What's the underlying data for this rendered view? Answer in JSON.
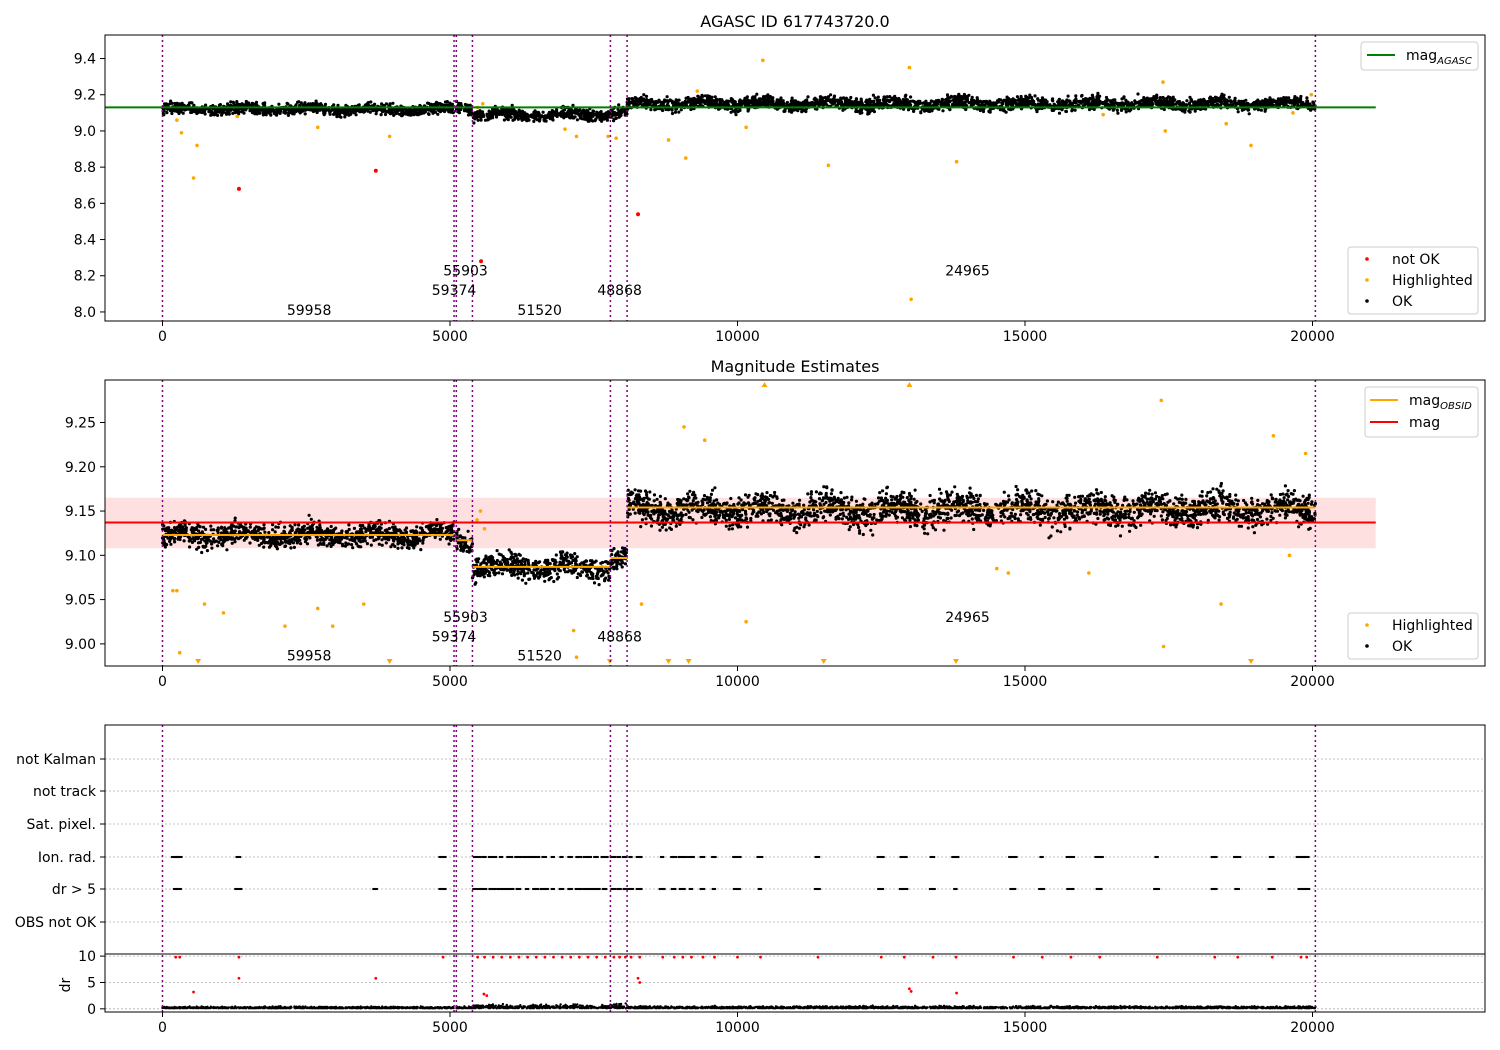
{
  "chart_data": [
    {
      "type": "scatter",
      "title": "AGASC ID 617743720.0",
      "xlabel": "",
      "ylabel": "",
      "xlim": [
        -1000,
        23000
      ],
      "ylim": [
        7.95,
        9.53
      ],
      "xticks": [
        0,
        5000,
        10000,
        15000,
        20000
      ],
      "yticks": [
        8.0,
        8.2,
        8.4,
        8.6,
        8.8,
        9.0,
        9.2,
        9.4
      ],
      "ytick_labels": [
        "8.0",
        "8.2",
        "8.4",
        "8.6",
        "8.8",
        "9.0",
        "9.2",
        "9.4"
      ],
      "grid": false,
      "obs_boundaries": [
        0,
        5070,
        5110,
        5390,
        7790,
        8080,
        20050
      ],
      "obs_labels": [
        {
          "text": "59958",
          "x": 2550,
          "y": 8.01
        },
        {
          "text": "59374",
          "x": 5070,
          "y": 8.12
        },
        {
          "text": "55903",
          "x": 5270,
          "y": 8.23
        },
        {
          "text": "51520",
          "x": 6560,
          "y": 8.01
        },
        {
          "text": "48868",
          "x": 7950,
          "y": 8.12
        },
        {
          "text": "24965",
          "x": 14000,
          "y": 8.23
        }
      ],
      "line": {
        "name": "mag_AGASC",
        "value": 9.13,
        "x_range": [
          -1000,
          21100
        ],
        "color": "#008000"
      },
      "bands": [
        {
          "x": [
            0,
            5070
          ],
          "mean": 9.12,
          "spread": 0.03
        },
        {
          "x": [
            5110,
            5390
          ],
          "mean": 9.13,
          "spread": 0.03
        },
        {
          "x": [
            5390,
            7790
          ],
          "mean": 9.09,
          "spread": 0.03
        },
        {
          "x": [
            7790,
            8080
          ],
          "mean": 9.1,
          "spread": 0.03
        },
        {
          "x": [
            8080,
            20050
          ],
          "mean": 9.15,
          "spread": 0.035
        }
      ],
      "series": [
        {
          "name": "not OK",
          "color": "#ff0000",
          "points": [
            [
              1330,
              8.68
            ],
            [
              3710,
              8.78
            ],
            [
              5540,
              8.28
            ],
            [
              8270,
              8.54
            ]
          ]
        },
        {
          "name": "Highlighted",
          "color": "#ffa500",
          "points": [
            [
              250,
              9.06
            ],
            [
              330,
              8.99
            ],
            [
              540,
              8.74
            ],
            [
              600,
              8.92
            ],
            [
              1300,
              9.08
            ],
            [
              2700,
              9.02
            ],
            [
              3950,
              8.97
            ],
            [
              5480,
              9.13
            ],
            [
              5570,
              9.15
            ],
            [
              7000,
              9.01
            ],
            [
              7200,
              8.97
            ],
            [
              7750,
              8.97
            ],
            [
              7890,
              8.96
            ],
            [
              8800,
              8.95
            ],
            [
              9300,
              9.22
            ],
            [
              9100,
              8.85
            ],
            [
              10440,
              9.39
            ],
            [
              10150,
              9.02
            ],
            [
              11580,
              8.81
            ],
            [
              12990,
              9.35
            ],
            [
              13020,
              8.07
            ],
            [
              13810,
              8.83
            ],
            [
              16360,
              9.09
            ],
            [
              17400,
              9.27
            ],
            [
              17440,
              9.0
            ],
            [
              18500,
              9.04
            ],
            [
              18930,
              8.92
            ],
            [
              19660,
              9.1
            ],
            [
              19980,
              9.2
            ]
          ]
        },
        {
          "name": "OK",
          "color": "#000000"
        }
      ],
      "legend": {
        "lines": [
          "mag_AGASC"
        ],
        "points": [
          "not OK",
          "Highlighted",
          "OK"
        ],
        "line_position": "top-right",
        "points_position": "lower-right"
      }
    },
    {
      "type": "scatter",
      "title": "Magnitude Estimates",
      "xlabel": "",
      "ylabel": "",
      "xlim": [
        -1000,
        23000
      ],
      "ylim": [
        8.975,
        9.298
      ],
      "xticks": [
        0,
        5000,
        10000,
        15000,
        20000
      ],
      "yticks": [
        9.0,
        9.05,
        9.1,
        9.15,
        9.2,
        9.25
      ],
      "ytick_labels": [
        "9.00",
        "9.05",
        "9.10",
        "9.15",
        "9.20",
        "9.25"
      ],
      "grid": false,
      "obs_boundaries": [
        0,
        5070,
        5110,
        5390,
        7790,
        8080,
        20050
      ],
      "obs_labels": [
        {
          "text": "59958",
          "x": 2550,
          "y": 8.987
        },
        {
          "text": "59374",
          "x": 5070,
          "y": 9.0085
        },
        {
          "text": "55903",
          "x": 5270,
          "y": 9.0305
        },
        {
          "text": "51520",
          "x": 6560,
          "y": 8.987
        },
        {
          "text": "48868",
          "x": 7950,
          "y": 9.0085
        },
        {
          "text": "24965",
          "x": 14000,
          "y": 9.0305
        }
      ],
      "mag": {
        "name": "mag",
        "value": 9.137,
        "band": [
          9.108,
          9.165
        ],
        "x_range": [
          -1000,
          21100
        ],
        "color": "#ff0000"
      },
      "mag_obsid": {
        "name": "mag_OBSID",
        "color": "#ffa500",
        "segments": [
          {
            "x": [
              0,
              5070
            ],
            "value": 9.123
          },
          {
            "x": [
              5110,
              5390
            ],
            "value": 9.117
          },
          {
            "x": [
              5390,
              7790
            ],
            "value": 9.087
          },
          {
            "x": [
              7790,
              8080
            ],
            "value": 9.097
          },
          {
            "x": [
              8080,
              20050
            ],
            "value": 9.154
          }
        ]
      },
      "bands": [
        {
          "x": [
            0,
            5070
          ],
          "mean": 9.123,
          "spread": 0.013
        },
        {
          "x": [
            5110,
            5390
          ],
          "mean": 9.117,
          "spread": 0.012
        },
        {
          "x": [
            5390,
            7790
          ],
          "mean": 9.087,
          "spread": 0.013
        },
        {
          "x": [
            7790,
            8080
          ],
          "mean": 9.097,
          "spread": 0.012
        },
        {
          "x": [
            8080,
            20050
          ],
          "mean": 9.152,
          "spread": 0.018
        }
      ],
      "series": [
        {
          "name": "Highlighted",
          "color": "#ffa500",
          "points": [
            [
              180,
              9.06
            ],
            [
              250,
              9.06
            ],
            [
              300,
              8.99
            ],
            [
              620,
              8.98
            ],
            [
              730,
              9.045
            ],
            [
              1060,
              9.035
            ],
            [
              2130,
              9.02
            ],
            [
              2700,
              9.04
            ],
            [
              2960,
              9.02
            ],
            [
              3500,
              9.045
            ],
            [
              3950,
              8.98
            ],
            [
              5470,
              9.14
            ],
            [
              5530,
              9.15
            ],
            [
              5600,
              9.13
            ],
            [
              7200,
              8.985
            ],
            [
              7150,
              9.015
            ],
            [
              7780,
              8.98
            ],
            [
              8330,
              9.045
            ],
            [
              8800,
              8.98
            ],
            [
              9150,
              8.98
            ],
            [
              9070,
              9.245
            ],
            [
              9430,
              9.23
            ],
            [
              10150,
              9.025
            ],
            [
              10470,
              9.298
            ],
            [
              11500,
              8.98
            ],
            [
              12990,
              9.298
            ],
            [
              13800,
              8.98
            ],
            [
              14510,
              9.085
            ],
            [
              14710,
              9.08
            ],
            [
              16110,
              9.08
            ],
            [
              17370,
              9.275
            ],
            [
              17410,
              8.997
            ],
            [
              18410,
              9.045
            ],
            [
              18930,
              8.98
            ],
            [
              19320,
              9.235
            ],
            [
              19600,
              9.1
            ],
            [
              19880,
              9.215
            ]
          ]
        },
        {
          "name": "OK",
          "color": "#000000"
        }
      ],
      "legend": {
        "lines": [
          "mag_OBSID",
          "mag"
        ],
        "points": [
          "Highlighted",
          "OK"
        ],
        "line_position": "top-right",
        "points_position": "lower-right"
      }
    },
    {
      "type": "scatter",
      "title": "",
      "xlabel": "",
      "ylabel": "",
      "xlim": [
        -1000,
        23000
      ],
      "xticks": [
        0,
        5000,
        10000,
        15000,
        20000
      ],
      "grid": true,
      "obs_boundaries": [
        0,
        5070,
        5110,
        5390,
        7790,
        8080,
        20050
      ],
      "flag_rows": [
        "not Kalman",
        "not track",
        "Sat. pixel.",
        "Ion. rad.",
        "dr > 5",
        "OBS not OK"
      ],
      "flag_events": {
        "Ion. rad.": [
          230,
          300,
          1330,
          4880,
          5480,
          5600,
          5750,
          5900,
          6050,
          6200,
          6350,
          6500,
          6650,
          6800,
          6950,
          7100,
          7250,
          7400,
          7550,
          7700,
          7850,
          7950,
          8050,
          8150,
          8300,
          8700,
          8900,
          9050,
          9200,
          9400,
          9600,
          10000,
          10400,
          11400,
          12500,
          12900,
          13400,
          13800,
          14800,
          15300,
          15800,
          16300,
          17300,
          18300,
          18700,
          19300,
          19800,
          19900
        ],
        "dr > 5": [
          230,
          300,
          1330,
          3710,
          4880,
          5480,
          5600,
          5750,
          5900,
          6050,
          6200,
          6350,
          6500,
          6650,
          6800,
          6950,
          7100,
          7250,
          7400,
          7550,
          7700,
          7850,
          7950,
          8050,
          8150,
          8300,
          8700,
          8900,
          9050,
          9200,
          9400,
          9600,
          10000,
          10400,
          11400,
          12500,
          12900,
          13400,
          13800,
          14800,
          15300,
          15800,
          16300,
          17300,
          18300,
          18700,
          19300,
          19800,
          19900
        ]
      },
      "dr": {
        "ylabel": "dr",
        "yticks": [
          0,
          5,
          10
        ],
        "ylim": [
          -0.6,
          10.4
        ],
        "typical": 0.6,
        "red_points": [
          [
            230,
            9.8
          ],
          [
            300,
            9.8
          ],
          [
            1330,
            9.8
          ],
          [
            4880,
            9.8
          ],
          [
            5480,
            9.8
          ],
          [
            5600,
            9.8
          ],
          [
            5750,
            9.8
          ],
          [
            5900,
            9.8
          ],
          [
            6050,
            9.8
          ],
          [
            6200,
            9.8
          ],
          [
            6350,
            9.8
          ],
          [
            6500,
            9.8
          ],
          [
            6650,
            9.8
          ],
          [
            6800,
            9.8
          ],
          [
            6950,
            9.8
          ],
          [
            7100,
            9.8
          ],
          [
            7250,
            9.8
          ],
          [
            7400,
            9.8
          ],
          [
            7550,
            9.8
          ],
          [
            7700,
            9.8
          ],
          [
            7850,
            9.8
          ],
          [
            7950,
            9.8
          ],
          [
            8050,
            9.8
          ],
          [
            8150,
            9.8
          ],
          [
            8300,
            9.8
          ],
          [
            8700,
            9.8
          ],
          [
            8900,
            9.8
          ],
          [
            9050,
            9.8
          ],
          [
            9200,
            9.8
          ],
          [
            9400,
            9.8
          ],
          [
            9600,
            9.8
          ],
          [
            10000,
            9.8
          ],
          [
            10400,
            9.8
          ],
          [
            11400,
            9.8
          ],
          [
            12500,
            9.8
          ],
          [
            12900,
            9.8
          ],
          [
            13400,
            9.8
          ],
          [
            13800,
            9.8
          ],
          [
            14800,
            9.8
          ],
          [
            15300,
            9.8
          ],
          [
            15800,
            9.8
          ],
          [
            16300,
            9.8
          ],
          [
            17300,
            9.8
          ],
          [
            18300,
            9.8
          ],
          [
            18700,
            9.8
          ],
          [
            19300,
            9.8
          ],
          [
            19800,
            9.8
          ],
          [
            19900,
            9.8
          ],
          [
            540,
            3.2
          ],
          [
            1330,
            5.8
          ],
          [
            3710,
            5.8
          ],
          [
            8270,
            5.8
          ],
          [
            8300,
            5.0
          ],
          [
            12990,
            3.8
          ],
          [
            13020,
            3.3
          ],
          [
            13810,
            3.0
          ],
          [
            5590,
            2.8
          ],
          [
            5640,
            2.5
          ]
        ]
      }
    }
  ]
}
